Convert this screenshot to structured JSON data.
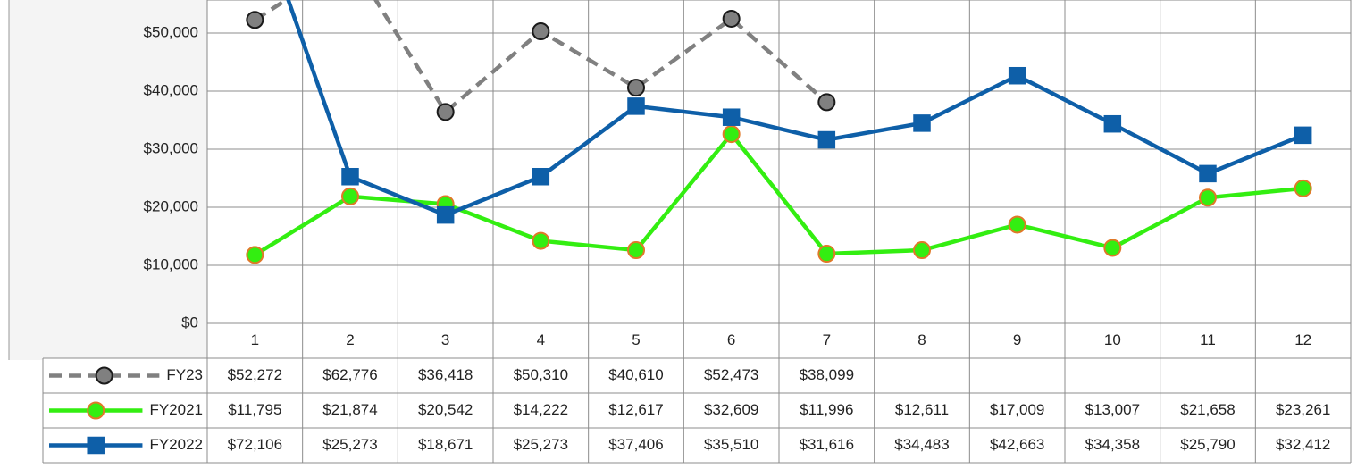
{
  "chart_data": {
    "type": "line",
    "categories": [
      "1",
      "2",
      "3",
      "4",
      "5",
      "6",
      "7",
      "8",
      "9",
      "10",
      "11",
      "12"
    ],
    "series": [
      {
        "name": "FY23",
        "color": "#808080",
        "dashed": true,
        "marker": "circle",
        "marker_edge": "#1a1a1a",
        "values": [
          52272,
          62776,
          36418,
          50310,
          40610,
          52473,
          38099,
          null,
          null,
          null,
          null,
          null
        ],
        "value_labels": [
          "$52,272",
          "$62,776",
          "$36,418",
          "$50,310",
          "$40,610",
          "$52,473",
          "$38,099",
          null,
          null,
          null,
          null,
          null
        ]
      },
      {
        "name": "FY2021",
        "color": "#33ee11",
        "dashed": false,
        "marker": "circle",
        "marker_edge": "#e07828",
        "values": [
          11795,
          21874,
          20542,
          14222,
          12617,
          32609,
          11996,
          12611,
          17009,
          13007,
          21658,
          23261
        ],
        "value_labels": [
          "$11,795",
          "$21,874",
          "$20,542",
          "$14,222",
          "$12,617",
          "$32,609",
          "$11,996",
          "$12,611",
          "$17,009",
          "$13,007",
          "$21,658",
          "$23,261"
        ]
      },
      {
        "name": "FY2022",
        "color": "#0e5fa8",
        "dashed": false,
        "marker": "square",
        "marker_edge": "#0e5fa8",
        "values": [
          72106,
          25273,
          18671,
          25273,
          37406,
          35510,
          31616,
          34483,
          42663,
          34358,
          25790,
          32412
        ],
        "value_labels": [
          "$72,106",
          "$25,273",
          "$18,671",
          "$25,273",
          "$37,406",
          "$35,510",
          "$31,616",
          "$34,483",
          "$42,663",
          "$34,358",
          "$25,790",
          "$32,412"
        ]
      }
    ],
    "ylim": [
      0,
      55700
    ],
    "yticks": [
      {
        "value": 0,
        "label": "$0"
      },
      {
        "value": 10000,
        "label": "$10,000"
      },
      {
        "value": 20000,
        "label": "$20,000"
      },
      {
        "value": 30000,
        "label": "$30,000"
      },
      {
        "value": 40000,
        "label": "$40,000"
      },
      {
        "value": 50000,
        "label": "$50,000"
      }
    ],
    "grid": true
  }
}
